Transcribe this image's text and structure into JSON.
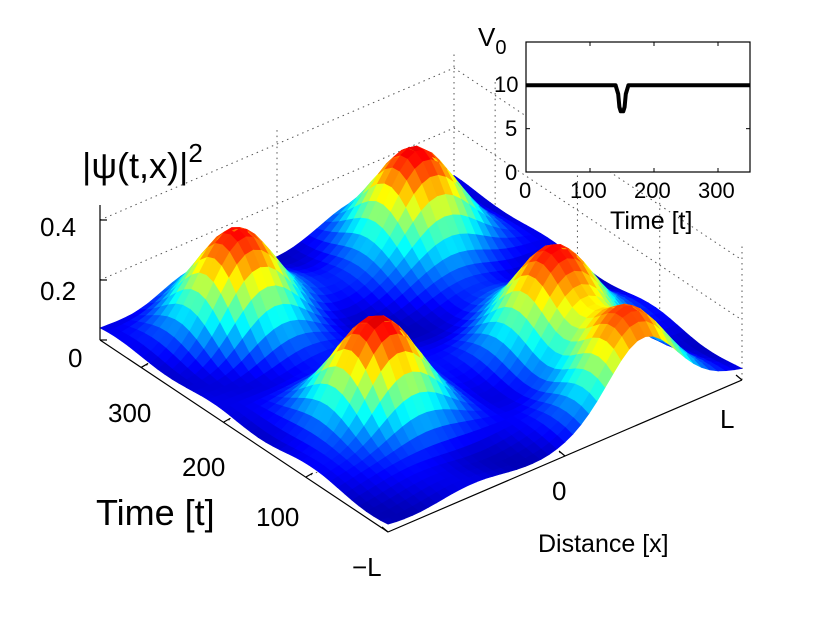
{
  "chart_data": [
    {
      "type": "surface",
      "title": "",
      "zlabel": {
        "text": "|ψ(t,x)|",
        "sup": "2"
      },
      "xlabel": "Distance  [x]",
      "ylabel": "Time [t]",
      "x_ticks": [
        "−L",
        "0",
        "L"
      ],
      "t_ticks": [
        "100",
        "200",
        "300"
      ],
      "z_ticks": [
        "0",
        "0.2",
        "0.4"
      ],
      "x_range": [
        -1,
        1
      ],
      "t_range": [
        0,
        350
      ],
      "z_range": [
        0,
        0.45
      ],
      "peaks": [
        {
          "x": -0.5,
          "t": 120,
          "height": 0.36
        },
        {
          "x": 0.5,
          "t": 120,
          "height": 0.36
        },
        {
          "x": -0.5,
          "t": 290,
          "height": 0.36
        },
        {
          "x": 0.5,
          "t": 290,
          "height": 0.36
        },
        {
          "x": 0.45,
          "t": 20,
          "height": 0.34
        }
      ],
      "colormap": "jet"
    },
    {
      "type": "line",
      "title": "",
      "ylabel": {
        "text": "V",
        "sub": "0"
      },
      "xlabel": "Time [t]",
      "xlim": [
        0,
        350
      ],
      "ylim": [
        0,
        15
      ],
      "x_ticks": [
        "0",
        "100",
        "200",
        "300"
      ],
      "y_ticks": [
        "0",
        "5",
        "10"
      ],
      "series": [
        {
          "name": "V0",
          "x": [
            0,
            140,
            144,
            146,
            148,
            150,
            152,
            154,
            156,
            160,
            350
          ],
          "y": [
            10,
            10,
            9.0,
            7.5,
            7,
            7,
            7,
            7.5,
            9.0,
            10,
            10
          ]
        }
      ]
    }
  ]
}
